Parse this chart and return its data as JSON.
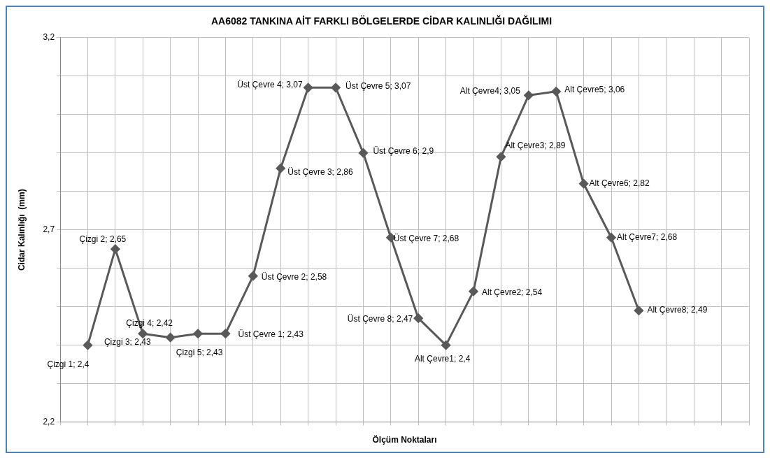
{
  "chart_data": {
    "type": "line",
    "title": "AA6082 TANKINA AİT FARKLI BÖLGELERDE CİDAR KALINLIĞI DAĞILIMI",
    "xlabel": "Ölçüm Noktaları",
    "ylabel": "Cidar Kalınlığı  (mm)",
    "categories": [
      null,
      null,
      null,
      null,
      null,
      null,
      null,
      null,
      null,
      null,
      null,
      null,
      null,
      null,
      null,
      null,
      null,
      null,
      null,
      null,
      null,
      null,
      null,
      null,
      null,
      null
    ],
    "series": [
      {
        "color": "#595959",
        "values": [
          null,
          2.4,
          2.65,
          2.43,
          2.42,
          2.43,
          2.43,
          2.58,
          2.86,
          3.07,
          3.07,
          2.9,
          2.68,
          2.47,
          2.4,
          2.54,
          2.89,
          3.05,
          3.06,
          2.82,
          2.68,
          2.49,
          null,
          null,
          null,
          null
        ],
        "value_labels": [
          null,
          "Çizgi 1; 2,4",
          "Çizgi 2; 2,65",
          "Çizgi 3; 2,43",
          "Çizgi 4; 2,42",
          "Çizgi 5; 2,43",
          "Üst Çevre 1; 2,43",
          "Üst Çevre 2; 2,58",
          "Üst Çevre 3; 2,86",
          "Üst Çevre 4; 3,07",
          "Üst Çevre 5; 3,07",
          "Üst Çevre 6; 2,9",
          "Üst Çevre 7; 2,68",
          "Üst Çevre 8; 2,47",
          "Alt Çevre1; 2,4",
          "Alt Çevre2; 2,54",
          "Alt Çevre3; 2,89",
          "Alt Çevre4; 3,05",
          "Alt Çevre5; 3,06",
          "Alt Çevre6; 2,82",
          "Alt Çevre7; 2,68",
          "Alt Çevre8; 2,49",
          null,
          null,
          null,
          null
        ]
      }
    ],
    "ylim": [
      2.2,
      3.2
    ],
    "yticks": [
      {
        "value": 2.2,
        "label": "2,2"
      },
      {
        "value": 2.3,
        "label": null
      },
      {
        "value": 2.4,
        "label": null
      },
      {
        "value": 2.5,
        "label": null
      },
      {
        "value": 2.6,
        "label": null
      },
      {
        "value": 2.7,
        "label": "2,7"
      },
      {
        "value": 2.8,
        "label": null
      },
      {
        "value": 2.9,
        "label": null
      },
      {
        "value": 3.0,
        "label": null
      },
      {
        "value": 3.1,
        "label": null
      },
      {
        "value": 3.2,
        "label": "3,2"
      }
    ],
    "tick_labels": "y",
    "grid": true,
    "legend": false,
    "marker": "diamond",
    "line_style": "solid"
  }
}
